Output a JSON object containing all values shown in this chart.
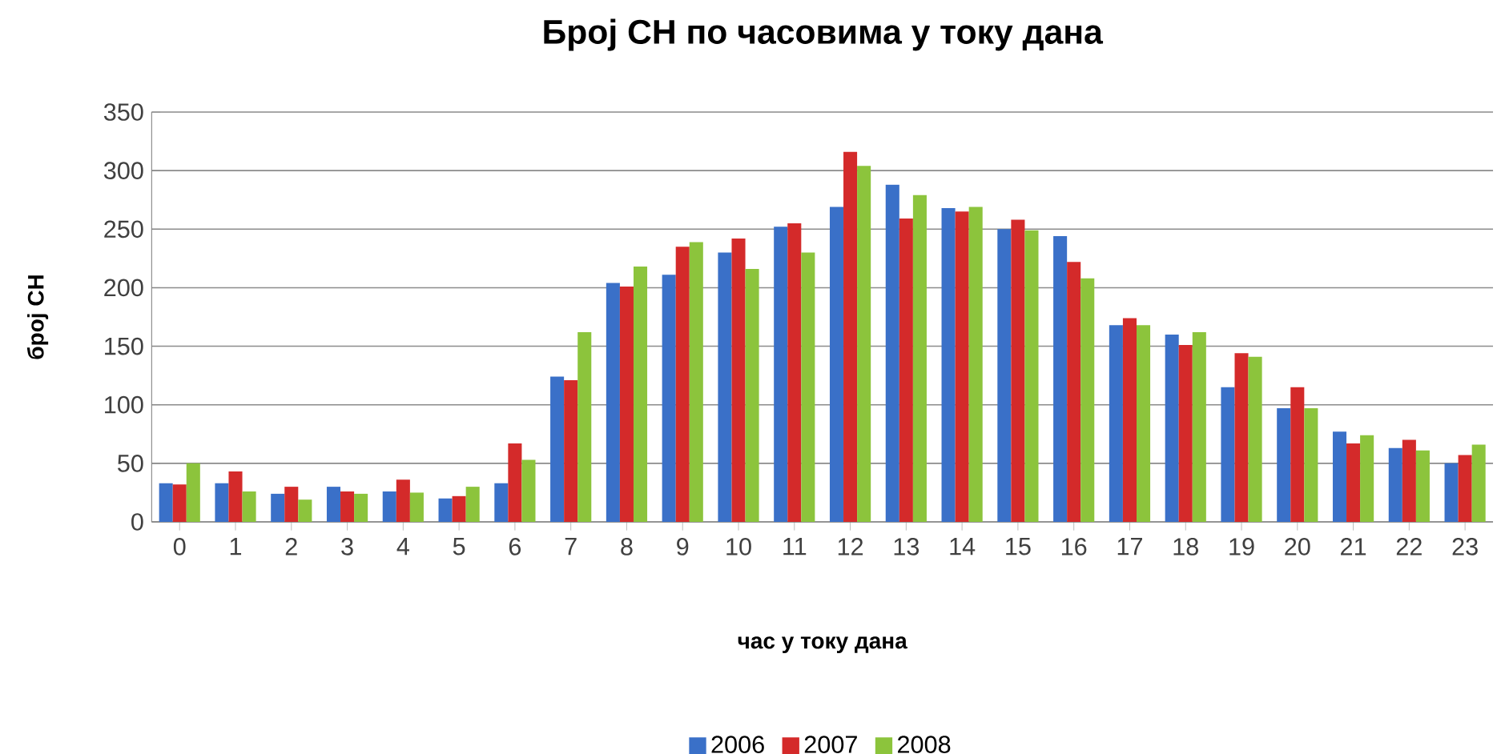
{
  "chart_data": {
    "type": "bar",
    "title": "Број СН по часовима у току дана",
    "xlabel": "час у току дана",
    "ylabel": "број СН",
    "categories": [
      "0",
      "1",
      "2",
      "3",
      "4",
      "5",
      "6",
      "7",
      "8",
      "9",
      "10",
      "11",
      "12",
      "13",
      "14",
      "15",
      "16",
      "17",
      "18",
      "19",
      "20",
      "21",
      "22",
      "23"
    ],
    "series": [
      {
        "name": "2006",
        "color": "#3a70c8",
        "values": [
          33,
          33,
          24,
          30,
          26,
          20,
          33,
          124,
          204,
          211,
          230,
          252,
          269,
          288,
          268,
          250,
          244,
          168,
          160,
          115,
          97,
          77,
          63,
          50
        ]
      },
      {
        "name": "2007",
        "color": "#d42a2a",
        "values": [
          32,
          43,
          30,
          26,
          36,
          22,
          67,
          121,
          201,
          235,
          242,
          255,
          316,
          259,
          265,
          258,
          222,
          174,
          151,
          144,
          115,
          67,
          70,
          57
        ]
      },
      {
        "name": "2008",
        "color": "#8cc43c",
        "values": [
          50,
          26,
          19,
          24,
          25,
          30,
          53,
          162,
          218,
          239,
          216,
          230,
          304,
          279,
          269,
          249,
          208,
          168,
          162,
          141,
          97,
          74,
          61,
          66
        ]
      }
    ],
    "ylim": [
      0,
      350
    ],
    "yticks": [
      0,
      50,
      100,
      150,
      200,
      250,
      300,
      350
    ],
    "grid": "y",
    "legend": "bottom"
  }
}
